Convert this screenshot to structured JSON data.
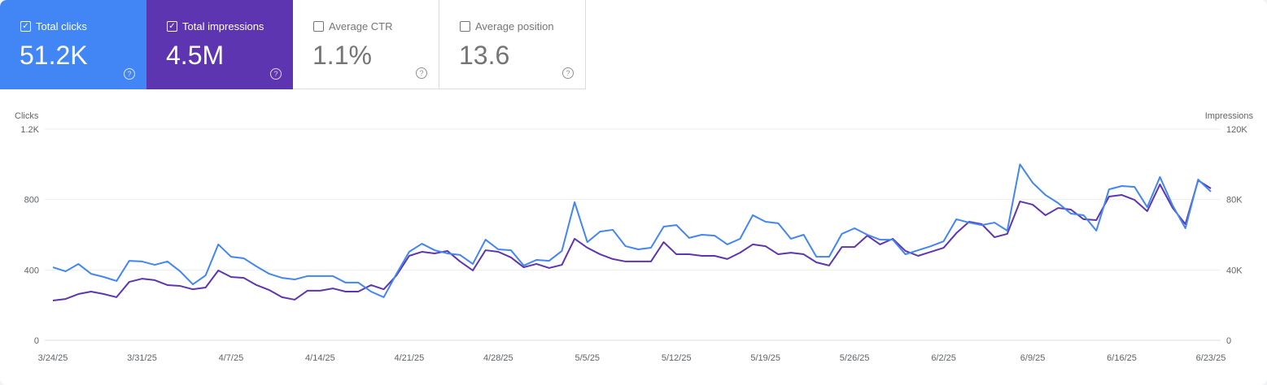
{
  "cards": [
    {
      "label": "Total clicks",
      "value": "51.2K",
      "checked": true,
      "color": "#4285f4"
    },
    {
      "label": "Total impressions",
      "value": "4.5M",
      "checked": true,
      "color": "#5e35b1"
    },
    {
      "label": "Average CTR",
      "value": "1.1%",
      "checked": false
    },
    {
      "label": "Average position",
      "value": "13.6",
      "checked": false
    }
  ],
  "chart_data": {
    "type": "line",
    "ylabel": "Clicks",
    "y2label": "Impressions",
    "ylim": [
      0,
      1200
    ],
    "y2lim": [
      0,
      120000
    ],
    "yticks": [
      "0",
      "400",
      "800",
      "1.2K"
    ],
    "y2ticks": [
      "0",
      "40K",
      "80K",
      "120K"
    ],
    "xticks": [
      "3/24/25",
      "3/31/25",
      "4/7/25",
      "4/14/25",
      "4/21/25",
      "4/28/25",
      "5/5/25",
      "5/12/25",
      "5/19/25",
      "5/26/25",
      "6/2/25",
      "6/9/25",
      "6/16/25",
      "6/23/25"
    ],
    "grid": true,
    "x": [
      "3/24/25",
      "3/25/25",
      "3/26/25",
      "3/27/25",
      "3/28/25",
      "3/29/25",
      "3/30/25",
      "3/31/25",
      "4/1/25",
      "4/2/25",
      "4/3/25",
      "4/4/25",
      "4/5/25",
      "4/6/25",
      "4/7/25",
      "4/8/25",
      "4/9/25",
      "4/10/25",
      "4/11/25",
      "4/12/25",
      "4/13/25",
      "4/14/25",
      "4/15/25",
      "4/16/25",
      "4/17/25",
      "4/18/25",
      "4/19/25",
      "4/20/25",
      "4/21/25",
      "4/22/25",
      "4/23/25",
      "4/24/25",
      "4/25/25",
      "4/26/25",
      "4/27/25",
      "4/28/25",
      "4/29/25",
      "4/30/25",
      "5/1/25",
      "5/2/25",
      "5/3/25",
      "5/4/25",
      "5/5/25",
      "5/6/25",
      "5/7/25",
      "5/8/25",
      "5/9/25",
      "5/10/25",
      "5/11/25",
      "5/12/25",
      "5/13/25",
      "5/14/25",
      "5/15/25",
      "5/16/25",
      "5/17/25",
      "5/18/25",
      "5/19/25",
      "5/20/25",
      "5/21/25",
      "5/22/25",
      "5/23/25",
      "5/24/25",
      "5/25/25",
      "5/26/25",
      "5/27/25",
      "5/28/25",
      "5/29/25",
      "5/30/25",
      "5/31/25",
      "6/1/25",
      "6/2/25",
      "6/3/25",
      "6/4/25",
      "6/5/25",
      "6/6/25",
      "6/7/25",
      "6/8/25",
      "6/9/25",
      "6/10/25",
      "6/11/25",
      "6/12/25",
      "6/13/25",
      "6/14/25",
      "6/15/25",
      "6/16/25",
      "6/17/25",
      "6/18/25",
      "6/19/25",
      "6/20/25",
      "6/21/25",
      "6/22/25",
      "6/23/25"
    ],
    "series": [
      {
        "name": "Clicks",
        "axis": "left",
        "color": "#4285f4",
        "values": [
          415,
          392,
          434,
          378,
          360,
          337,
          452,
          448,
          429,
          448,
          392,
          318,
          369,
          545,
          475,
          466,
          420,
          378,
          355,
          346,
          365,
          365,
          365,
          328,
          328,
          277,
          245,
          378,
          503,
          549,
          512,
          494,
          485,
          434,
          572,
          517,
          512,
          425,
          457,
          452,
          508,
          785,
          558,
          618,
          628,
          535,
          517,
          526,
          646,
          655,
          582,
          600,
          595,
          545,
          577,
          711,
          674,
          665,
          577,
          600,
          475,
          475,
          605,
          637,
          600,
          572,
          572,
          489,
          512,
          535,
          563,
          688,
          669,
          655,
          669,
          623,
          1000,
          895,
          826,
          780,
          720,
          711,
          623,
          858,
          877,
          872,
          757,
          928,
          766,
          637,
          914,
          845
        ]
      },
      {
        "name": "Impressions",
        "axis": "right",
        "color": "#5e35b1",
        "values": [
          22600,
          23500,
          26300,
          27700,
          26300,
          24500,
          33200,
          35000,
          34200,
          31400,
          30900,
          29000,
          30000,
          39700,
          36000,
          35500,
          31400,
          28600,
          24500,
          23100,
          28200,
          28200,
          29500,
          27700,
          27700,
          31400,
          29000,
          36900,
          48000,
          50300,
          49400,
          50800,
          44800,
          39700,
          51200,
          50300,
          47100,
          41500,
          43400,
          41100,
          42900,
          57700,
          52600,
          48900,
          46200,
          44800,
          44800,
          44800,
          55800,
          48900,
          48900,
          48000,
          48000,
          46200,
          49800,
          54500,
          53500,
          48900,
          49800,
          48900,
          44300,
          42500,
          53000,
          53000,
          59500,
          54500,
          57700,
          50800,
          48000,
          50300,
          52600,
          60900,
          67400,
          66000,
          58600,
          60500,
          78900,
          77100,
          71100,
          75200,
          74300,
          68800,
          68300,
          81700,
          82600,
          79800,
          73400,
          88600,
          75200,
          66000,
          90900,
          86300
        ]
      }
    ]
  }
}
